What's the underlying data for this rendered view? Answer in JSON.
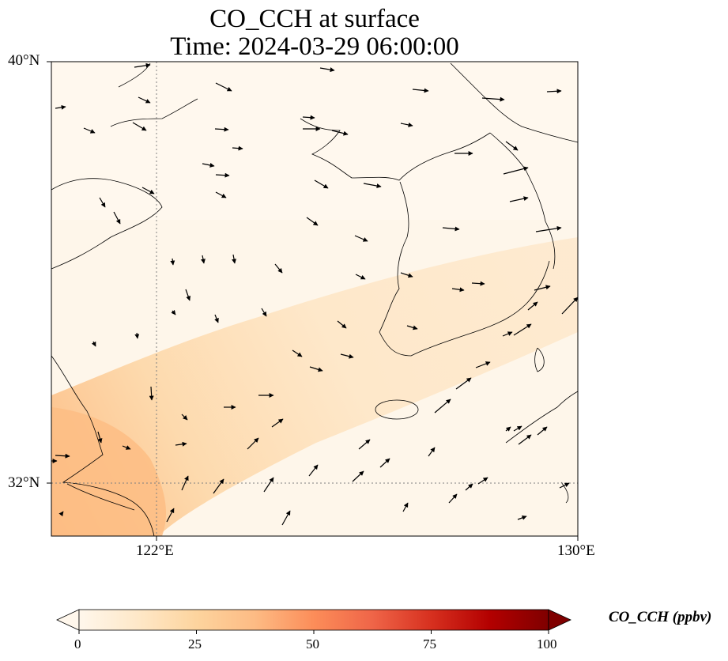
{
  "title": {
    "line1": "CO_CCH at surface",
    "line2": "Time: 2024-03-29 06:00:00"
  },
  "map": {
    "extent": {
      "lon_min": 120,
      "lon_max": 130,
      "lat_min": 31,
      "lat_max": 40
    },
    "lat_ticks": [
      {
        "value": 40,
        "label": "40°N"
      },
      {
        "value": 32,
        "label": "32°N"
      }
    ],
    "lon_ticks": [
      {
        "value": 122,
        "label": "122°E"
      },
      {
        "value": 130,
        "label": "130°E"
      }
    ],
    "gridlines": {
      "lons": [
        122
      ],
      "lats": [
        32
      ],
      "style": "dotted"
    },
    "variable": "CO_CCH",
    "field_description": "light concentration field with a higher plume near the Yangtze estuary extending northeast toward southern Korea",
    "wind_vectors": "black arrows on a regular grid"
  },
  "colorbar": {
    "label": "CO_CCH (ppbv)",
    "min": 0,
    "max": 100,
    "extend": "both",
    "colormap": "OrRd",
    "ticks": [
      "0",
      "25",
      "50",
      "75",
      "100"
    ],
    "colors": [
      "#fff7ec",
      "#fee8c8",
      "#fdd49e",
      "#fdbb84",
      "#fc8d59",
      "#ef6548",
      "#d7301f",
      "#b30000",
      "#7f0000"
    ]
  }
}
